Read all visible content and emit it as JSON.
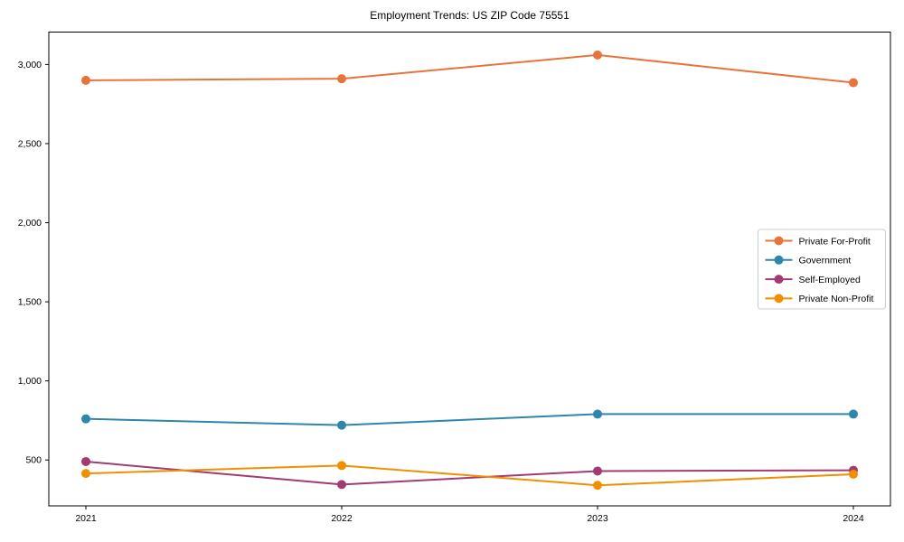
{
  "figure": {
    "background": "#ffffff",
    "spine_color": "#000000",
    "legend_border_color": "#cccccc",
    "legend_background": "#ffffff"
  },
  "chart_data": {
    "type": "line",
    "title": "Employment Trends: US ZIP Code 75551",
    "xlabel": "",
    "ylabel": "",
    "grid": false,
    "legend_position": "right-middle",
    "marker": "circle",
    "x_categories": [
      "2021",
      "2022",
      "2023",
      "2024"
    ],
    "y_ticks": [
      500,
      1000,
      1500,
      2000,
      2500,
      3000
    ],
    "y_tick_labels": [
      "500",
      "1,000",
      "1,500",
      "2,000",
      "2,500",
      "3,000"
    ],
    "ylim": [
      210,
      3205
    ],
    "series": [
      {
        "name": "Private For-Profit",
        "color": "#E8743B",
        "values": [
          2900,
          2910,
          3060,
          2885
        ]
      },
      {
        "name": "Government",
        "color": "#2E86AB",
        "values": [
          760,
          720,
          790,
          790
        ]
      },
      {
        "name": "Self-Employed",
        "color": "#A23B72",
        "values": [
          490,
          345,
          430,
          435
        ]
      },
      {
        "name": "Private Non-Profit",
        "color": "#F18F01",
        "values": [
          415,
          465,
          340,
          410
        ]
      }
    ]
  }
}
